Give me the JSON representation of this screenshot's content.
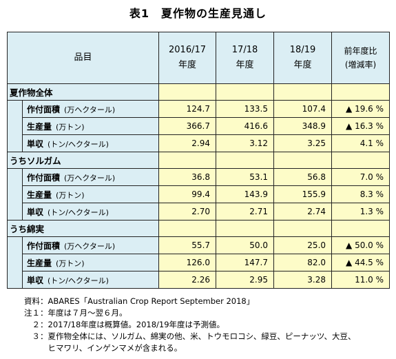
{
  "title": "表1　夏作物の生産見通し",
  "header": {
    "item": "品目",
    "col1": [
      "2016/17",
      "年度"
    ],
    "col2": [
      "17/18",
      "年度"
    ],
    "col3": [
      "18/19",
      "年度"
    ],
    "col4": [
      "前年度比",
      "(増減率)"
    ]
  },
  "groups": [
    {
      "name": "夏作物全体",
      "rows": [
        {
          "label": "作付面積",
          "unit": "(万ヘクタール)",
          "v1": "124.7",
          "v2": "133.5",
          "v3": "107.4",
          "v4": "▲ 19.6 %"
        },
        {
          "label": "生産量",
          "unit": "(万トン)",
          "v1": "366.7",
          "v2": "416.6",
          "v3": "348.9",
          "v4": "▲ 16.3 %"
        },
        {
          "label": "単収",
          "unit": "(トン/ヘクタール)",
          "v1": "2.94",
          "v2": "3.12",
          "v3": "3.25",
          "v4": "4.1 %"
        }
      ]
    },
    {
      "name": "うちソルガム",
      "rows": [
        {
          "label": "作付面積",
          "unit": "(万ヘクタール)",
          "v1": "36.8",
          "v2": "53.1",
          "v3": "56.8",
          "v4": "7.0 %"
        },
        {
          "label": "生産量",
          "unit": "(万トン)",
          "v1": "99.4",
          "v2": "143.9",
          "v3": "155.9",
          "v4": "8.3 %"
        },
        {
          "label": "単収",
          "unit": "(トン/ヘクタール)",
          "v1": "2.70",
          "v2": "2.71",
          "v3": "2.74",
          "v4": "1.3 %"
        }
      ]
    },
    {
      "name": "うち綿実",
      "rows": [
        {
          "label": "作付面積",
          "unit": "(万ヘクタール)",
          "v1": "55.7",
          "v2": "50.0",
          "v3": "25.0",
          "v4": "▲ 50.0 %"
        },
        {
          "label": "生産量",
          "unit": "(万トン)",
          "v1": "126.0",
          "v2": "147.7",
          "v3": "82.0",
          "v4": "▲ 44.5 %"
        },
        {
          "label": "単収",
          "unit": "(トン/ヘクタール)",
          "v1": "2.26",
          "v2": "2.95",
          "v3": "3.28",
          "v4": "11.0 %"
        }
      ]
    }
  ],
  "notes": [
    "資料：ABARES「Australian Crop Report September 2018」",
    "注１：年度は７月～翌６月。",
    "　２：2017/18年度は概算値。2018/19年度は予測値。",
    "　３：夏作物全体には、ソルガム、綿実の他、米、トウモロコシ、緑豆、ピーナッツ、大豆、",
    "　　　ヒマワリ、インゲンマメが含まれる。"
  ],
  "colors": {
    "header_bg": "#dbeef4",
    "value_bg": "#fdfcc8"
  }
}
